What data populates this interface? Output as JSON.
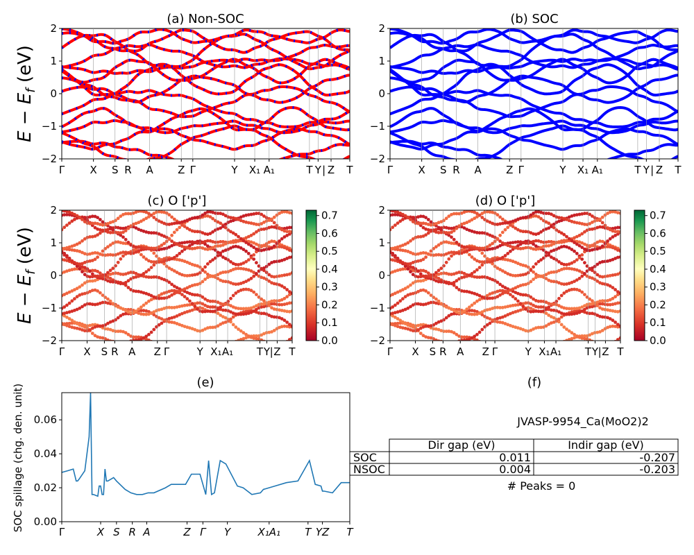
{
  "figure": {
    "table_title": "JVASP-9954_Ca(MoO2)2",
    "peaks_note": "# Peaks = 0"
  },
  "colors": {
    "nsoc_line": "#ff0000",
    "soc_line": "#0000ff",
    "spillage_line": "#1f77b4",
    "colormap": [
      "#a50026",
      "#d73027",
      "#f46d43",
      "#fdae61",
      "#fee08b",
      "#ffffbf",
      "#d9ef8b",
      "#a6d96a",
      "#66bd63",
      "#1a9850",
      "#006837"
    ]
  },
  "bandpath": {
    "labels": [
      "Γ",
      "X",
      "S",
      "R",
      "A",
      "Z",
      "Γ",
      "Y",
      "X₁",
      "A₁",
      "T",
      "Y",
      "|",
      "Z",
      "T"
    ],
    "positions": [
      0,
      0.11,
      0.185,
      0.23,
      0.305,
      0.415,
      0.455,
      0.6,
      0.67,
      0.72,
      0.86,
      0.89,
      0.91,
      0.935,
      1.0
    ]
  },
  "chart_data": [
    {
      "id": "a",
      "type": "line",
      "title": "(a) Non-SOC",
      "ylabel": "E − E_f (eV)",
      "ylim": [
        -2,
        2
      ],
      "yticks": [
        "2",
        "1",
        "0",
        "−1",
        "−2"
      ],
      "series": [
        {
          "style": "red line with blue dashes"
        }
      ]
    },
    {
      "id": "b",
      "type": "line",
      "title": "(b) SOC",
      "ylim": [
        -2,
        2
      ],
      "yticks": [
        "2",
        "1",
        "0",
        "−1",
        "−2"
      ],
      "series": [
        {
          "style": "blue line"
        }
      ]
    },
    {
      "id": "c",
      "type": "scatter",
      "title": "(c)  O ['p']",
      "ylabel": "E − E_f (eV)",
      "ylim": [
        -2,
        2
      ],
      "yticks": [
        "2",
        "1",
        "0",
        "−1",
        "−2"
      ],
      "colorbar": {
        "range": [
          0.0,
          0.73
        ],
        "ticks": [
          "0.0",
          "0.1",
          "0.2",
          "0.3",
          "0.4",
          "0.5",
          "0.6",
          "0.7"
        ]
      }
    },
    {
      "id": "d",
      "type": "scatter",
      "title": "(d) O ['p']",
      "ylim": [
        -2,
        2
      ],
      "yticks": [
        "2",
        "1",
        "0",
        "−1",
        "−2"
      ],
      "colorbar": {
        "range": [
          0.0,
          0.73
        ],
        "ticks": [
          "0.0",
          "0.1",
          "0.2",
          "0.3",
          "0.4",
          "0.5",
          "0.6",
          "0.7"
        ]
      }
    },
    {
      "id": "e",
      "type": "line",
      "title": "(e)",
      "ylabel": "SOC spillage (chg. den. unit)",
      "ylim": [
        0,
        0.076
      ],
      "yticks": [
        "0.06",
        "0.04",
        "0.02",
        "0.00"
      ],
      "xticklabels": [
        "Γ",
        "X",
        "S",
        "R",
        "A",
        "Z",
        "Γ",
        "Y",
        "X₁A₁",
        "T",
        "YZ",
        "T"
      ],
      "x": [
        0,
        0.02,
        0.04,
        0.05,
        0.055,
        0.06,
        0.08,
        0.095,
        0.1,
        0.105,
        0.11,
        0.125,
        0.13,
        0.135,
        0.14,
        0.145,
        0.15,
        0.155,
        0.16,
        0.18,
        0.19,
        0.22,
        0.24,
        0.26,
        0.28,
        0.3,
        0.32,
        0.36,
        0.38,
        0.4,
        0.43,
        0.45,
        0.48,
        0.5,
        0.51,
        0.52,
        0.53,
        0.55,
        0.57,
        0.61,
        0.63,
        0.66,
        0.69,
        0.7,
        0.74,
        0.78,
        0.82,
        0.86,
        0.88,
        0.9,
        0.905,
        0.91,
        0.94,
        0.97,
        1.0
      ],
      "y": [
        0.029,
        0.03,
        0.031,
        0.024,
        0.024,
        0.025,
        0.03,
        0.05,
        0.076,
        0.016,
        0.016,
        0.015,
        0.021,
        0.021,
        0.016,
        0.016,
        0.031,
        0.024,
        0.024,
        0.026,
        0.024,
        0.019,
        0.017,
        0.016,
        0.016,
        0.017,
        0.017,
        0.02,
        0.022,
        0.022,
        0.022,
        0.028,
        0.028,
        0.016,
        0.036,
        0.016,
        0.017,
        0.036,
        0.034,
        0.021,
        0.02,
        0.016,
        0.017,
        0.019,
        0.021,
        0.023,
        0.024,
        0.036,
        0.022,
        0.021,
        0.018,
        0.018,
        0.017,
        0.023,
        0.023
      ]
    },
    {
      "id": "f",
      "type": "table",
      "title": "(f)",
      "columns": [
        "",
        "Dir gap (eV)",
        "Indir gap (eV)"
      ],
      "rows": [
        {
          "label": "SOC",
          "dir_gap": "0.011",
          "indir_gap": "-0.207"
        },
        {
          "label": "NSOC",
          "dir_gap": "0.004",
          "indir_gap": "-0.203"
        }
      ]
    }
  ]
}
